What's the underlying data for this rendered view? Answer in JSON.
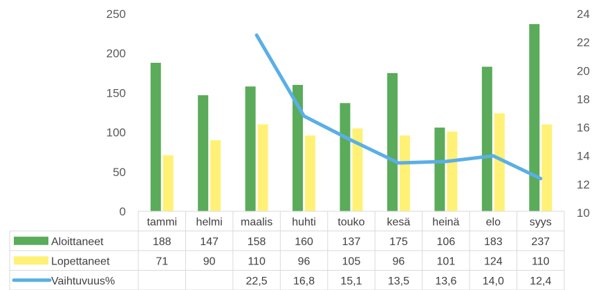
{
  "chart_data": {
    "type": "bar",
    "categories": [
      "tammi",
      "helmi",
      "maalis",
      "huhti",
      "touko",
      "kesä",
      "heinä",
      "elo",
      "syys"
    ],
    "series": [
      {
        "name": "Aloittaneet",
        "type": "bar",
        "axis": "left",
        "color": "#5aab5a",
        "values": [
          188,
          147,
          158,
          160,
          137,
          175,
          106,
          183,
          237
        ],
        "labels": [
          "188",
          "147",
          "158",
          "160",
          "137",
          "175",
          "106",
          "183",
          "237"
        ]
      },
      {
        "name": "Lopettaneet",
        "type": "bar",
        "axis": "left",
        "color": "#fff176",
        "values": [
          71,
          90,
          110,
          96,
          105,
          96,
          101,
          124,
          110
        ],
        "labels": [
          "71",
          "90",
          "110",
          "96",
          "105",
          "96",
          "101",
          "124",
          "110"
        ]
      },
      {
        "name": "Vaihtuvuus%",
        "type": "line",
        "axis": "right",
        "color": "#5aafe6",
        "values": [
          null,
          null,
          22.5,
          16.8,
          15.1,
          13.5,
          13.6,
          14.0,
          12.4
        ],
        "labels": [
          "",
          "",
          "22,5",
          "16,8",
          "15,1",
          "13,5",
          "13,6",
          "14,0",
          "12,4"
        ]
      }
    ],
    "y_left": {
      "ylim": [
        0,
        250
      ],
      "ticks": [
        "0",
        "50",
        "100",
        "150",
        "200",
        "250"
      ]
    },
    "y_right": {
      "ylim": [
        10,
        24
      ],
      "ticks": [
        "10",
        "12",
        "14",
        "16",
        "18",
        "20",
        "22",
        "24"
      ]
    },
    "grid": false,
    "legend": "data-table"
  }
}
